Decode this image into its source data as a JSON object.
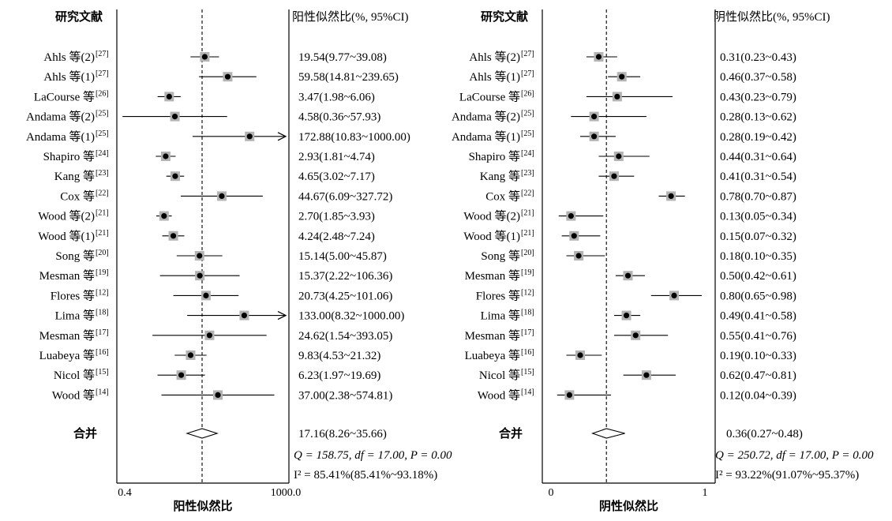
{
  "chart_data": [
    {
      "type": "forest",
      "scale": "log",
      "header_left": "研究文献",
      "header_right": "阳性似然比(%, 95%CI)",
      "xlabel": "阳性似然比",
      "xlim": [
        0.4,
        1000.0
      ],
      "ticks": [
        "0.4",
        "1000.0"
      ],
      "reference_line": 17.16,
      "studies": [
        {
          "author": "Ahls 等(2)",
          "ref": "[27]",
          "est": 19.54,
          "lo": 9.77,
          "hi": 39.08,
          "text": "19.54(9.77~39.08)"
        },
        {
          "author": "Ahls 等(1)",
          "ref": "[27]",
          "est": 59.58,
          "lo": 14.81,
          "hi": 239.65,
          "text": "59.58(14.81~239.65)"
        },
        {
          "author": "LaCourse 等",
          "ref": "[26]",
          "est": 3.47,
          "lo": 1.98,
          "hi": 6.06,
          "text": "3.47(1.98~6.06)"
        },
        {
          "author": "Andama 等(2)",
          "ref": "[25]",
          "est": 4.58,
          "lo": 0.36,
          "hi": 57.93,
          "text": "4.58(0.36~57.93)"
        },
        {
          "author": "Andama 等(1)",
          "ref": "[25]",
          "est": 172.88,
          "lo": 10.83,
          "hi": 1000.0,
          "text": "172.88(10.83~1000.00)",
          "arrow": true
        },
        {
          "author": "Shapiro 等",
          "ref": "[24]",
          "est": 2.93,
          "lo": 1.81,
          "hi": 4.74,
          "text": "2.93(1.81~4.74)"
        },
        {
          "author": "Kang 等",
          "ref": "[23]",
          "est": 4.65,
          "lo": 3.02,
          "hi": 7.17,
          "text": "4.65(3.02~7.17)"
        },
        {
          "author": "Cox 等",
          "ref": "[22]",
          "est": 44.67,
          "lo": 6.09,
          "hi": 327.72,
          "text": "44.67(6.09~327.72)"
        },
        {
          "author": "Wood 等(2)",
          "ref": "[21]",
          "est": 2.7,
          "lo": 1.85,
          "hi": 3.93,
          "text": "2.70(1.85~3.93)"
        },
        {
          "author": "Wood 等(1)",
          "ref": "[21]",
          "est": 4.24,
          "lo": 2.48,
          "hi": 7.24,
          "text": "4.24(2.48~7.24)"
        },
        {
          "author": "Song 等",
          "ref": "[20]",
          "est": 15.14,
          "lo": 5.0,
          "hi": 45.87,
          "text": "15.14(5.00~45.87)"
        },
        {
          "author": "Mesman 等",
          "ref": "[19]",
          "est": 15.37,
          "lo": 2.22,
          "hi": 106.36,
          "text": "15.37(2.22~106.36)"
        },
        {
          "author": "Flores 等",
          "ref": "[12]",
          "est": 20.73,
          "lo": 4.25,
          "hi": 101.06,
          "text": "20.73(4.25~101.06)"
        },
        {
          "author": "Lima 等",
          "ref": "[18]",
          "est": 133.0,
          "lo": 8.32,
          "hi": 1000.0,
          "text": "133.00(8.32~1000.00)",
          "arrow": true
        },
        {
          "author": "Mesman 等",
          "ref": "[17]",
          "est": 24.62,
          "lo": 1.54,
          "hi": 393.05,
          "text": "24.62(1.54~393.05)"
        },
        {
          "author": "Luabeya 等",
          "ref": "[16]",
          "est": 9.83,
          "lo": 4.53,
          "hi": 21.32,
          "text": "9.83(4.53~21.32)"
        },
        {
          "author": "Nicol 等",
          "ref": "[15]",
          "est": 6.23,
          "lo": 1.97,
          "hi": 19.69,
          "text": "6.23(1.97~19.69)"
        },
        {
          "author": "Wood 等",
          "ref": "[14]",
          "est": 37.0,
          "lo": 2.38,
          "hi": 574.81,
          "text": "37.00(2.38~574.81)"
        }
      ],
      "pooled": {
        "label": "合并",
        "est": 17.16,
        "lo": 8.26,
        "hi": 35.66,
        "text": "17.16(8.26~35.66)"
      },
      "heterogeneity": [
        "Q = 158.75, df = 17.00, P = 0.00",
        "I² = 85.41%(85.41%~93.18%)"
      ]
    },
    {
      "type": "forest",
      "scale": "linear",
      "header_left": "研究文献",
      "header_right": "阴性似然比(%, 95%CI)",
      "xlabel": "阴性似然比",
      "xlim": [
        0,
        1
      ],
      "ticks": [
        "0",
        "1"
      ],
      "reference_line": 0.36,
      "studies": [
        {
          "author": "Ahls 等(2)",
          "ref": "[27]",
          "est": 0.31,
          "lo": 0.23,
          "hi": 0.43,
          "text": "0.31(0.23~0.43)"
        },
        {
          "author": "Ahls 等(1)",
          "ref": "[27]",
          "est": 0.46,
          "lo": 0.37,
          "hi": 0.58,
          "text": "0.46(0.37~0.58)"
        },
        {
          "author": "LaCourse 等",
          "ref": "[26]",
          "est": 0.43,
          "lo": 0.23,
          "hi": 0.79,
          "text": "0.43(0.23~0.79)"
        },
        {
          "author": "Andama 等(2)",
          "ref": "[25]",
          "est": 0.28,
          "lo": 0.13,
          "hi": 0.62,
          "text": "0.28(0.13~0.62)"
        },
        {
          "author": "Andama 等(1)",
          "ref": "[25]",
          "est": 0.28,
          "lo": 0.19,
          "hi": 0.42,
          "text": "0.28(0.19~0.42)"
        },
        {
          "author": "Shapiro 等",
          "ref": "[24]",
          "est": 0.44,
          "lo": 0.31,
          "hi": 0.64,
          "text": "0.44(0.31~0.64)"
        },
        {
          "author": "Kang 等",
          "ref": "[23]",
          "est": 0.41,
          "lo": 0.31,
          "hi": 0.54,
          "text": "0.41(0.31~0.54)"
        },
        {
          "author": "Cox 等",
          "ref": "[22]",
          "est": 0.78,
          "lo": 0.7,
          "hi": 0.87,
          "text": "0.78(0.70~0.87)"
        },
        {
          "author": "Wood 等(2)",
          "ref": "[21]",
          "est": 0.13,
          "lo": 0.05,
          "hi": 0.34,
          "text": "0.13(0.05~0.34)"
        },
        {
          "author": "Wood 等(1)",
          "ref": "[21]",
          "est": 0.15,
          "lo": 0.07,
          "hi": 0.32,
          "text": "0.15(0.07~0.32)"
        },
        {
          "author": "Song 等",
          "ref": "[20]",
          "est": 0.18,
          "lo": 0.1,
          "hi": 0.35,
          "text": "0.18(0.10~0.35)"
        },
        {
          "author": "Mesman 等",
          "ref": "[19]",
          "est": 0.5,
          "lo": 0.42,
          "hi": 0.61,
          "text": "0.50(0.42~0.61)"
        },
        {
          "author": "Flores 等",
          "ref": "[12]",
          "est": 0.8,
          "lo": 0.65,
          "hi": 0.98,
          "text": "0.80(0.65~0.98)"
        },
        {
          "author": "Lima 等",
          "ref": "[18]",
          "est": 0.49,
          "lo": 0.41,
          "hi": 0.58,
          "text": "0.49(0.41~0.58)"
        },
        {
          "author": "Mesman 等",
          "ref": "[17]",
          "est": 0.55,
          "lo": 0.41,
          "hi": 0.76,
          "text": "0.55(0.41~0.76)"
        },
        {
          "author": "Luabeya 等",
          "ref": "[16]",
          "est": 0.19,
          "lo": 0.1,
          "hi": 0.33,
          "text": "0.19(0.10~0.33)"
        },
        {
          "author": "Nicol 等",
          "ref": "[15]",
          "est": 0.62,
          "lo": 0.47,
          "hi": 0.81,
          "text": "0.62(0.47~0.81)"
        },
        {
          "author": "Wood 等",
          "ref": "[14]",
          "est": 0.12,
          "lo": 0.04,
          "hi": 0.39,
          "text": "0.12(0.04~0.39)"
        }
      ],
      "pooled": {
        "label": "合并",
        "est": 0.36,
        "lo": 0.27,
        "hi": 0.48,
        "text": "0.36(0.27~0.48)"
      },
      "heterogeneity": [
        "Q = 250.72, df = 17.00, P = 0.00",
        "I² = 93.22%(91.07%~95.37%)"
      ]
    }
  ],
  "colors": {
    "marker_box": "#b3b3b3",
    "marker_dot": "#000000",
    "line": "#000000"
  }
}
